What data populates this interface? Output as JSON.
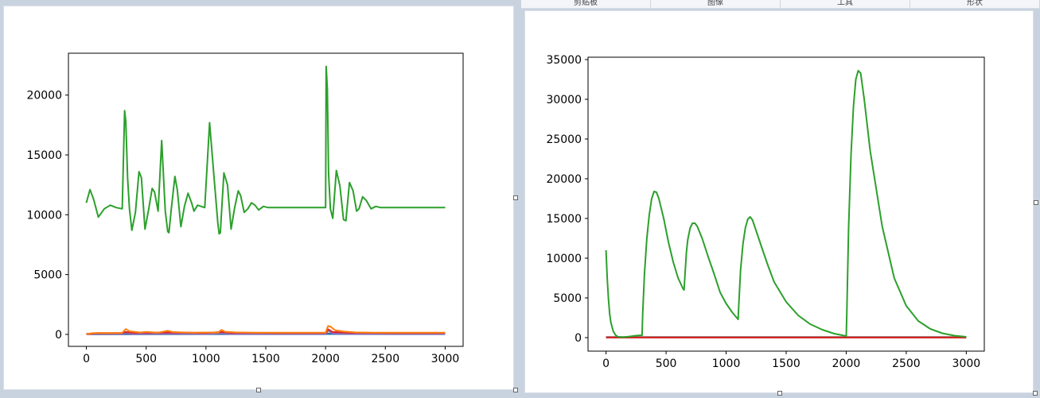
{
  "top_tabs": [
    "剪贴板",
    "图像",
    "工具",
    "形状"
  ],
  "chart_data": [
    {
      "type": "line",
      "title": "",
      "xlabel": "",
      "ylabel": "",
      "xlim": [
        -150,
        3150
      ],
      "ylim": [
        -1000,
        23500
      ],
      "xticks": [
        0,
        500,
        1000,
        1500,
        2000,
        2500,
        3000
      ],
      "yticks": [
        0,
        5000,
        10000,
        15000,
        20000
      ],
      "grid": false,
      "series": [
        {
          "color": "#2ca02c",
          "x": [
            0,
            30,
            60,
            100,
            150,
            200,
            250,
            300,
            320,
            330,
            345,
            360,
            380,
            410,
            440,
            460,
            490,
            520,
            550,
            570,
            600,
            630,
            660,
            680,
            690,
            710,
            740,
            760,
            790,
            820,
            850,
            880,
            900,
            930,
            960,
            990,
            1030,
            1070,
            1100,
            1110,
            1120,
            1130,
            1150,
            1180,
            1210,
            1240,
            1270,
            1290,
            1320,
            1350,
            1380,
            1410,
            1440,
            1480,
            1520,
            1560,
            1600,
            1650,
            1700,
            1800,
            1900,
            2000,
            2005,
            2015,
            2025,
            2040,
            2060,
            2090,
            2120,
            2150,
            2170,
            2200,
            2230,
            2260,
            2280,
            2310,
            2340,
            2380,
            2420,
            2460,
            2500,
            2550,
            2600,
            2700,
            2800,
            2900,
            3000
          ],
          "y": [
            11000,
            12100,
            11300,
            9800,
            10500,
            10800,
            10600,
            10500,
            18700,
            17800,
            13000,
            10500,
            8700,
            10200,
            13600,
            13100,
            8800,
            10400,
            12200,
            11900,
            10300,
            16200,
            10300,
            8600,
            8500,
            10500,
            13200,
            12100,
            9000,
            10700,
            11800,
            11000,
            10300,
            10800,
            10700,
            10600,
            17700,
            12800,
            9200,
            8400,
            8500,
            10200,
            13500,
            12500,
            8800,
            10600,
            12000,
            11600,
            10200,
            10500,
            11000,
            10800,
            10400,
            10700,
            10600,
            10600,
            10600,
            10600,
            10600,
            10600,
            10600,
            10600,
            22400,
            20500,
            13500,
            10500,
            9700,
            13700,
            12400,
            9600,
            9500,
            12700,
            12000,
            10300,
            10500,
            11500,
            11200,
            10500,
            10700,
            10600,
            10600,
            10600,
            10600,
            10600,
            10600,
            10600,
            10600
          ]
        },
        {
          "color": "#ff7f0e",
          "x": [
            0,
            50,
            100,
            200,
            300,
            330,
            360,
            400,
            450,
            500,
            600,
            680,
            720,
            800,
            900,
            1000,
            1100,
            1130,
            1160,
            1250,
            1400,
            1600,
            1800,
            2000,
            2020,
            2040,
            2080,
            2150,
            2250,
            2400,
            2600,
            2800,
            3000
          ],
          "y": [
            0,
            100,
            120,
            110,
            130,
            450,
            260,
            220,
            160,
            210,
            150,
            300,
            200,
            170,
            150,
            160,
            150,
            380,
            220,
            170,
            150,
            140,
            140,
            140,
            700,
            650,
            350,
            250,
            170,
            150,
            140,
            140,
            140
          ]
        },
        {
          "color": "#d62728",
          "x": [
            0,
            100,
            300,
            330,
            380,
            700,
            1000,
            1130,
            1200,
            1600,
            2000,
            2020,
            2060,
            2200,
            2500,
            3000
          ],
          "y": [
            50,
            110,
            120,
            200,
            140,
            160,
            120,
            200,
            140,
            120,
            120,
            430,
            200,
            140,
            120,
            120
          ]
        },
        {
          "color": "#9467bd",
          "x": [
            0,
            100,
            300,
            330,
            380,
            700,
            1000,
            1130,
            1200,
            1600,
            2000,
            2020,
            2060,
            2200,
            2500,
            3000
          ],
          "y": [
            20,
            40,
            40,
            120,
            50,
            60,
            40,
            100,
            50,
            40,
            40,
            320,
            80,
            50,
            40,
            40
          ]
        },
        {
          "color": "#1f77b4",
          "x": [
            0,
            1000,
            2000,
            3000
          ],
          "y": [
            20,
            30,
            30,
            30
          ]
        },
        {
          "color": "#8c564b",
          "x": [
            0,
            1000,
            2000,
            2020,
            2060,
            3000
          ],
          "y": [
            10,
            20,
            20,
            90,
            30,
            20
          ]
        }
      ]
    },
    {
      "type": "line",
      "title": "",
      "xlabel": "",
      "ylabel": "",
      "xlim": [
        -150,
        3150
      ],
      "ylim": [
        -1700,
        35300
      ],
      "xticks": [
        0,
        500,
        1000,
        1500,
        2000,
        2500,
        3000
      ],
      "yticks": [
        0,
        5000,
        10000,
        15000,
        20000,
        25000,
        30000,
        35000
      ],
      "grid": false,
      "series": [
        {
          "color": "#2ca02c",
          "x": [
            0,
            10,
            20,
            30,
            40,
            60,
            80,
            100,
            140,
            200,
            250,
            300,
            305,
            320,
            340,
            360,
            380,
            400,
            420,
            440,
            480,
            520,
            560,
            600,
            640,
            650,
            660,
            670,
            680,
            700,
            720,
            740,
            760,
            800,
            850,
            900,
            950,
            1000,
            1050,
            1100,
            1105,
            1120,
            1140,
            1160,
            1180,
            1200,
            1220,
            1260,
            1300,
            1350,
            1400,
            1500,
            1600,
            1700,
            1800,
            1900,
            2000,
            2005,
            2020,
            2040,
            2060,
            2080,
            2100,
            2120,
            2150,
            2200,
            2300,
            2400,
            2500,
            2600,
            2700,
            2800,
            2900,
            3000
          ],
          "y": [
            11000,
            7500,
            4800,
            3000,
            1900,
            800,
            300,
            100,
            50,
            150,
            250,
            300,
            3000,
            8000,
            12500,
            15500,
            17500,
            18400,
            18300,
            17500,
            15000,
            12000,
            9500,
            7500,
            6200,
            6000,
            8500,
            10800,
            12300,
            13800,
            14400,
            14400,
            14000,
            12500,
            10200,
            8000,
            5700,
            4300,
            3200,
            2300,
            4000,
            8500,
            11800,
            13800,
            14900,
            15200,
            14800,
            13000,
            11200,
            9000,
            7000,
            4500,
            2800,
            1700,
            1000,
            500,
            200,
            3000,
            14000,
            23000,
            29000,
            32500,
            33600,
            33300,
            30000,
            23500,
            14000,
            7500,
            4000,
            2100,
            1100,
            550,
            250,
            100
          ]
        },
        {
          "color": "#d62728",
          "x": [
            0,
            3000
          ],
          "y": [
            0,
            0
          ]
        },
        {
          "color": "#8c564b",
          "x": [
            0,
            3000
          ],
          "y": [
            80,
            80
          ]
        }
      ]
    }
  ]
}
